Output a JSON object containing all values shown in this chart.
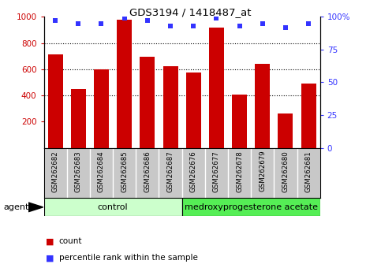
{
  "title": "GDS3194 / 1418487_at",
  "categories": [
    "GSM262682",
    "GSM262683",
    "GSM262684",
    "GSM262685",
    "GSM262686",
    "GSM262687",
    "GSM262676",
    "GSM262677",
    "GSM262678",
    "GSM262679",
    "GSM262680",
    "GSM262681"
  ],
  "counts": [
    710,
    450,
    600,
    980,
    695,
    620,
    575,
    920,
    405,
    640,
    265,
    490
  ],
  "percentiles": [
    97,
    95,
    95,
    99,
    97,
    93,
    93,
    99,
    93,
    95,
    92,
    95
  ],
  "bar_color": "#cc0000",
  "dot_color": "#3333ff",
  "ylim_left": [
    0,
    1000
  ],
  "ylim_right": [
    0,
    100
  ],
  "yticks_left": [
    200,
    400,
    600,
    800,
    1000
  ],
  "yticks_right": [
    0,
    25,
    50,
    75,
    100
  ],
  "grid_values": [
    400,
    600,
    800
  ],
  "group1_label": "control",
  "group2_label": "medroxyprogesterone acetate",
  "group1_color": "#ccffcc",
  "group2_color": "#55ee55",
  "agent_label": "agent",
  "legend_count_label": "count",
  "legend_pct_label": "percentile rank within the sample",
  "bg_color": "#ffffff",
  "tick_area_color": "#c8c8c8",
  "n_group1": 6,
  "n_group2": 6
}
